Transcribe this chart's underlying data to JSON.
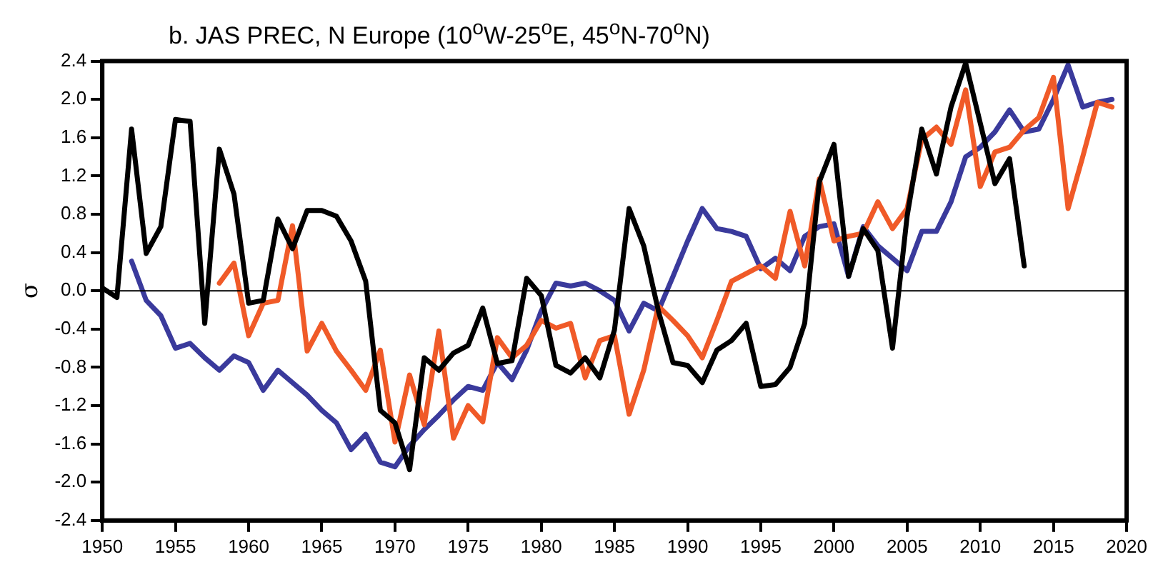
{
  "chart_data": {
    "type": "line",
    "title": "b. JAS PREC, N Europe (10$^{o}$W-25$^{o}$E, 45$^{o}$N-70$^{o}$N)",
    "ylabel": "σ",
    "xlim": [
      1950,
      2020
    ],
    "xticks": [
      1950,
      1955,
      1960,
      1965,
      1970,
      1975,
      1980,
      1985,
      1990,
      1995,
      2000,
      2005,
      2010,
      2015,
      2020
    ],
    "ylim": [
      -2.4,
      2.4
    ],
    "yticks": [
      {
        "value": -2.4,
        "label": "-2.4"
      },
      {
        "value": -2,
        "label": "-2.0"
      },
      {
        "value": -1.6,
        "label": "-1.6"
      },
      {
        "value": -1.2,
        "label": "-1.2"
      },
      {
        "value": -0.8,
        "label": "-0.8"
      },
      {
        "value": -0.4,
        "label": "-0.4"
      },
      {
        "value": 0,
        "label": "0.0"
      },
      {
        "value": 0.4,
        "label": "0.4"
      },
      {
        "value": 0.8,
        "label": "0.8"
      },
      {
        "value": 1.2,
        "label": "1.2"
      },
      {
        "value": 1.6,
        "label": "1.6"
      },
      {
        "value": 2,
        "label": "2.0"
      },
      {
        "value": 2.4,
        "label": "2.4"
      }
    ],
    "grid": false,
    "legend": false,
    "marker": "none",
    "line_style": "solid",
    "ref_lines": [
      {
        "axis": "y",
        "value": 0,
        "color": "#000000"
      }
    ],
    "series": [
      {
        "color": "#000000",
        "x": [
          1950,
          1951,
          1952,
          1953,
          1954,
          1955,
          1956,
          1957,
          1958,
          1959,
          1960,
          1961,
          1962,
          1963,
          1964,
          1965,
          1966,
          1967,
          1968,
          1969,
          1970,
          1971,
          1972,
          1973,
          1974,
          1975,
          1976,
          1977,
          1978,
          1979,
          1980,
          1981,
          1982,
          1983,
          1984,
          1985,
          1986,
          1987,
          1988,
          1989,
          1990,
          1991,
          1992,
          1993,
          1994,
          1995,
          1996,
          1997,
          1998,
          1999,
          2000,
          2001,
          2002,
          2003,
          2004,
          2005,
          2006,
          2007,
          2008,
          2009,
          2010,
          2011,
          2012,
          2013
        ],
        "values": [
          0.03,
          -0.07,
          1.69,
          0.39,
          0.67,
          1.79,
          1.77,
          -0.34,
          1.48,
          1.01,
          -0.13,
          -0.1,
          0.75,
          0.44,
          0.84,
          0.84,
          0.78,
          0.52,
          0.1,
          -1.25,
          -1.38,
          -1.87,
          -0.7,
          -0.83,
          -0.65,
          -0.57,
          -0.18,
          -0.76,
          -0.73,
          0.13,
          -0.05,
          -0.78,
          -0.86,
          -0.7,
          -0.91,
          -0.41,
          0.86,
          0.47,
          -0.21,
          -0.75,
          -0.78,
          -0.96,
          -0.62,
          -0.52,
          -0.34,
          -1.0,
          -0.98,
          -0.8,
          -0.34,
          1.14,
          1.53,
          0.15,
          0.65,
          0.42,
          -0.6,
          0.78,
          1.69,
          1.22,
          1.92,
          2.38,
          1.75,
          1.12,
          1.38,
          0.26
        ]
      },
      {
        "color": "#f05a28",
        "x": [
          1958,
          1959,
          1960,
          1961,
          1962,
          1963,
          1964,
          1965,
          1966,
          1967,
          1968,
          1969,
          1970,
          1971,
          1972,
          1973,
          1974,
          1975,
          1976,
          1977,
          1978,
          1979,
          1980,
          1981,
          1982,
          1983,
          1984,
          1985,
          1986,
          1987,
          1988,
          1989,
          1990,
          1991,
          1992,
          1993,
          1994,
          1995,
          1996,
          1997,
          1998,
          1999,
          2000,
          2001,
          2002,
          2003,
          2004,
          2005,
          2006,
          2007,
          2008,
          2009,
          2010,
          2011,
          2012,
          2013,
          2014,
          2015,
          2016,
          2017,
          2018,
          2019
        ],
        "values": [
          0.08,
          0.29,
          -0.47,
          -0.13,
          -0.1,
          0.68,
          -0.63,
          -0.34,
          -0.63,
          -0.83,
          -1.04,
          -0.62,
          -1.58,
          -0.88,
          -1.4,
          -0.42,
          -1.54,
          -1.2,
          -1.37,
          -0.49,
          -0.7,
          -0.57,
          -0.31,
          -0.39,
          -0.34,
          -0.91,
          -0.52,
          -0.47,
          -1.29,
          -0.83,
          -0.16,
          -0.31,
          -0.47,
          -0.7,
          -0.31,
          0.1,
          0.18,
          0.26,
          0.13,
          0.83,
          0.26,
          1.17,
          0.52,
          0.57,
          0.6,
          0.93,
          0.65,
          0.86,
          1.58,
          1.71,
          1.53,
          2.1,
          1.09,
          1.45,
          1.5,
          1.68,
          1.81,
          2.23,
          0.86,
          1.4,
          1.97,
          1.92
        ]
      },
      {
        "color": "#3a3a9c",
        "x": [
          1952,
          1953,
          1954,
          1955,
          1956,
          1957,
          1958,
          1959,
          1960,
          1961,
          1962,
          1963,
          1964,
          1965,
          1966,
          1967,
          1968,
          1969,
          1970,
          1971,
          1972,
          1973,
          1974,
          1975,
          1976,
          1977,
          1978,
          1979,
          1980,
          1981,
          1982,
          1983,
          1984,
          1985,
          1986,
          1987,
          1988,
          1989,
          1990,
          1991,
          1992,
          1993,
          1994,
          1995,
          1996,
          1997,
          1998,
          1999,
          2000,
          2001,
          2002,
          2003,
          2004,
          2005,
          2006,
          2007,
          2008,
          2009,
          2010,
          2011,
          2012,
          2013,
          2014,
          2015,
          2016,
          2017,
          2018,
          2019
        ],
        "values": [
          0.31,
          -0.1,
          -0.26,
          -0.6,
          -0.55,
          -0.7,
          -0.83,
          -0.68,
          -0.75,
          -1.04,
          -0.83,
          -0.96,
          -1.09,
          -1.25,
          -1.38,
          -1.66,
          -1.5,
          -1.79,
          -1.84,
          -1.62,
          -1.45,
          -1.3,
          -1.14,
          -1.0,
          -1.04,
          -0.75,
          -0.93,
          -0.62,
          -0.21,
          0.08,
          0.05,
          0.08,
          0.0,
          -0.1,
          -0.42,
          -0.13,
          -0.21,
          0.15,
          0.52,
          0.86,
          0.65,
          0.62,
          0.57,
          0.23,
          0.34,
          0.21,
          0.57,
          0.67,
          0.7,
          0.15,
          0.67,
          0.47,
          0.34,
          0.21,
          0.62,
          0.62,
          0.93,
          1.4,
          1.5,
          1.66,
          1.89,
          1.66,
          1.69,
          2.0,
          2.36,
          1.92,
          1.97,
          2.0
        ]
      }
    ]
  }
}
